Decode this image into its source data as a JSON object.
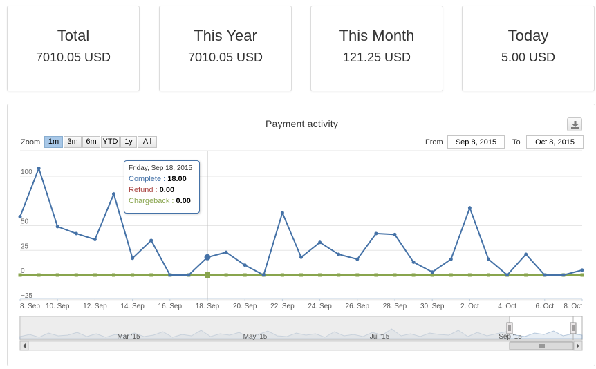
{
  "stats": {
    "total": {
      "label": "Total",
      "value": "7010.05 USD"
    },
    "year": {
      "label": "This Year",
      "value": "7010.05 USD"
    },
    "month": {
      "label": "This Month",
      "value": "121.25 USD"
    },
    "today": {
      "label": "Today",
      "value": "5.00 USD"
    }
  },
  "chart": {
    "title": "Payment activity",
    "zoom_label": "Zoom",
    "zoom_buttons": [
      "1m",
      "3m",
      "6m",
      "YTD",
      "1y",
      "All"
    ],
    "zoom_active": "1m",
    "from_label": "From",
    "from_value": "Sep 8, 2015",
    "to_label": "To",
    "to_value": "Oct 8, 2015",
    "tooltip": {
      "date": "Friday, Sep 18, 2015",
      "rows": [
        {
          "name": "Complete",
          "value": "18.00"
        },
        {
          "name": "Refund",
          "value": "0.00"
        },
        {
          "name": "Chargeback",
          "value": "0.00"
        }
      ]
    },
    "navigator_labels": [
      "Mar '15",
      "May '15",
      "Jul '15",
      "Sep '15"
    ],
    "colors": {
      "complete": "#4572a7",
      "refund": "#aa4643",
      "chargeback": "#89a54e",
      "zoom_active": "#a8c8e8"
    }
  },
  "chart_data": {
    "type": "line",
    "title": "Payment activity",
    "x_tick_labels": [
      "8. Sep",
      "10. Sep",
      "12. Sep",
      "14. Sep",
      "16. Sep",
      "18. Sep",
      "20. Sep",
      "22. Sep",
      "24. Sep",
      "26. Sep",
      "28. Sep",
      "30. Sep",
      "2. Oct",
      "4. Oct",
      "6. Oct",
      "8. Oct"
    ],
    "y_ticks": [
      -25,
      0,
      25,
      50,
      100
    ],
    "ylim": [
      -25,
      115
    ],
    "x": [
      "Sep 8, 2015",
      "Sep 9, 2015",
      "Sep 10, 2015",
      "Sep 11, 2015",
      "Sep 12, 2015",
      "Sep 13, 2015",
      "Sep 14, 2015",
      "Sep 15, 2015",
      "Sep 16, 2015",
      "Sep 17, 2015",
      "Sep 18, 2015",
      "Sep 19, 2015",
      "Sep 20, 2015",
      "Sep 21, 2015",
      "Sep 22, 2015",
      "Sep 23, 2015",
      "Sep 24, 2015",
      "Sep 25, 2015",
      "Sep 26, 2015",
      "Sep 27, 2015",
      "Sep 28, 2015",
      "Sep 29, 2015",
      "Sep 30, 2015",
      "Oct 1, 2015",
      "Oct 2, 2015",
      "Oct 3, 2015",
      "Oct 4, 2015",
      "Oct 5, 2015",
      "Oct 6, 2015",
      "Oct 7, 2015",
      "Oct 8, 2015"
    ],
    "series": [
      {
        "name": "Complete",
        "values": [
          59,
          108,
          49,
          42,
          36,
          82,
          17,
          35,
          0,
          0,
          18,
          23,
          10,
          0,
          63,
          18,
          33,
          21,
          16,
          42,
          41,
          13,
          3,
          16,
          68,
          16,
          0,
          21,
          0,
          0,
          5
        ]
      },
      {
        "name": "Refund",
        "values": [
          0,
          0,
          0,
          0,
          0,
          0,
          0,
          0,
          0,
          0,
          0,
          0,
          0,
          0,
          0,
          0,
          0,
          0,
          0,
          0,
          0,
          0,
          0,
          0,
          0,
          0,
          0,
          0,
          0,
          0,
          0
        ]
      },
      {
        "name": "Chargeback",
        "values": [
          0,
          0,
          0,
          0,
          0,
          0,
          0,
          0,
          0,
          0,
          0,
          0,
          0,
          0,
          0,
          0,
          0,
          0,
          0,
          0,
          0,
          0,
          0,
          0,
          0,
          0,
          0,
          0,
          0,
          0,
          0
        ]
      }
    ]
  }
}
